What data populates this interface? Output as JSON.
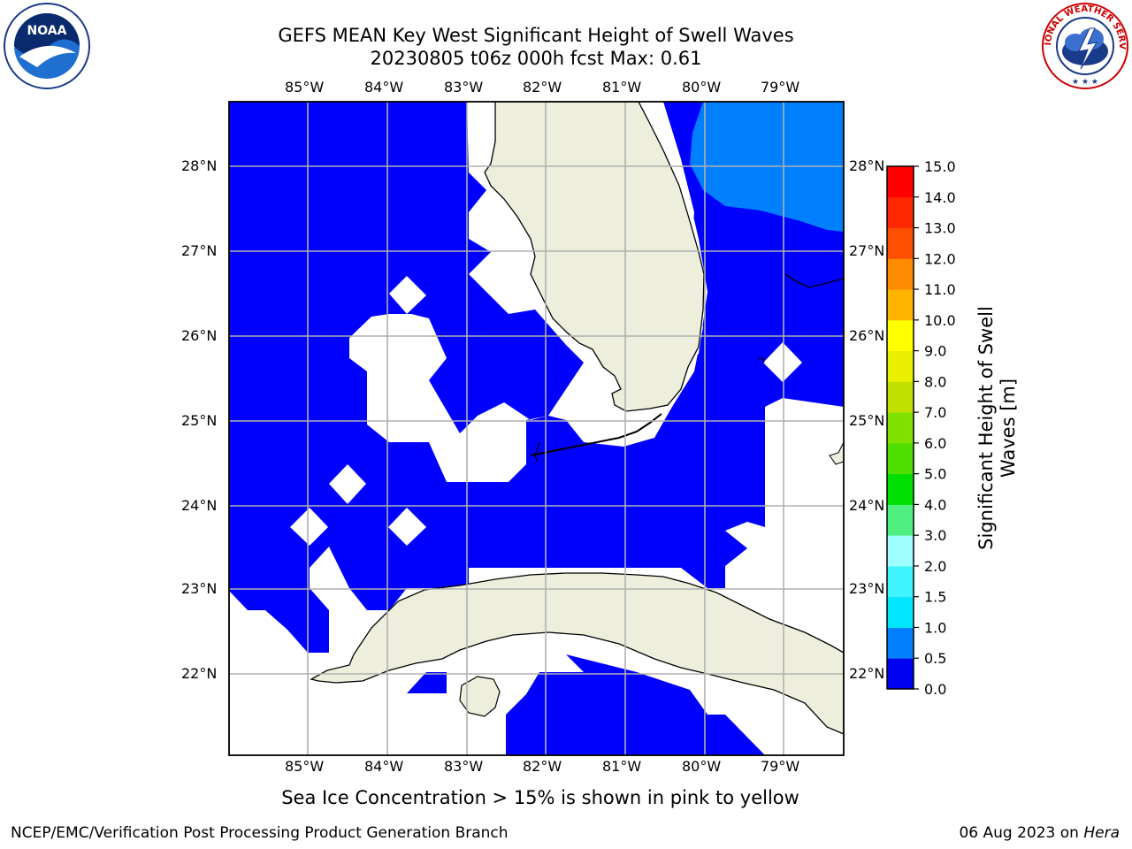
{
  "title_line1": "GEFS MEAN Key West Significant Height of Swell Waves",
  "title_line2": "20230805 t06z 000h fcst   Max: 0.61",
  "lon_labels": [
    "85°W",
    "84°W",
    "83°W",
    "82°W",
    "81°W",
    "80°W",
    "79°W"
  ],
  "lat_labels": [
    "28°N",
    "27°N",
    "26°N",
    "25°N",
    "24°N",
    "23°N",
    "22°N"
  ],
  "colorbar": {
    "label_line1": "Significant Height of Swell",
    "label_line2": "Waves [m]",
    "tick_labels": [
      "0.0",
      "0.5",
      "1.0",
      "1.5",
      "2.0",
      "3.0",
      "4.0",
      "5.0",
      "6.0",
      "7.0",
      "8.0",
      "9.0",
      "10.0",
      "11.0",
      "12.0",
      "13.0",
      "14.0",
      "15.0"
    ],
    "colors": [
      "#0000f0",
      "#0080ff",
      "#00e6ff",
      "#40f4ff",
      "#70faff",
      "#9ffcff",
      "#50f080",
      "#00e000",
      "#50e000",
      "#80e000",
      "#c0e000",
      "#e8f000",
      "#ffff00",
      "#ffe000",
      "#ffb400",
      "#ff8c00",
      "#ff5000",
      "#ff2800",
      "#ff0000"
    ]
  },
  "colors": {
    "ocean_swell_0_0_5": "#0000ff",
    "ocean_swell_0_5_1_0": "#0080ff",
    "land": "#eeeedd",
    "grid": "#b0b0b0"
  },
  "note": "Sea Ice Concentration > 15% is shown in pink to yellow",
  "footer_left": "NCEP/EMC/Verification Post Processing Product Generation Branch",
  "footer_right_date": "06 Aug 2023 on ",
  "footer_right_host": "Hera",
  "logos": {
    "noaa": "NOAA",
    "nws": "NATIONAL WEATHER SERVICE"
  }
}
